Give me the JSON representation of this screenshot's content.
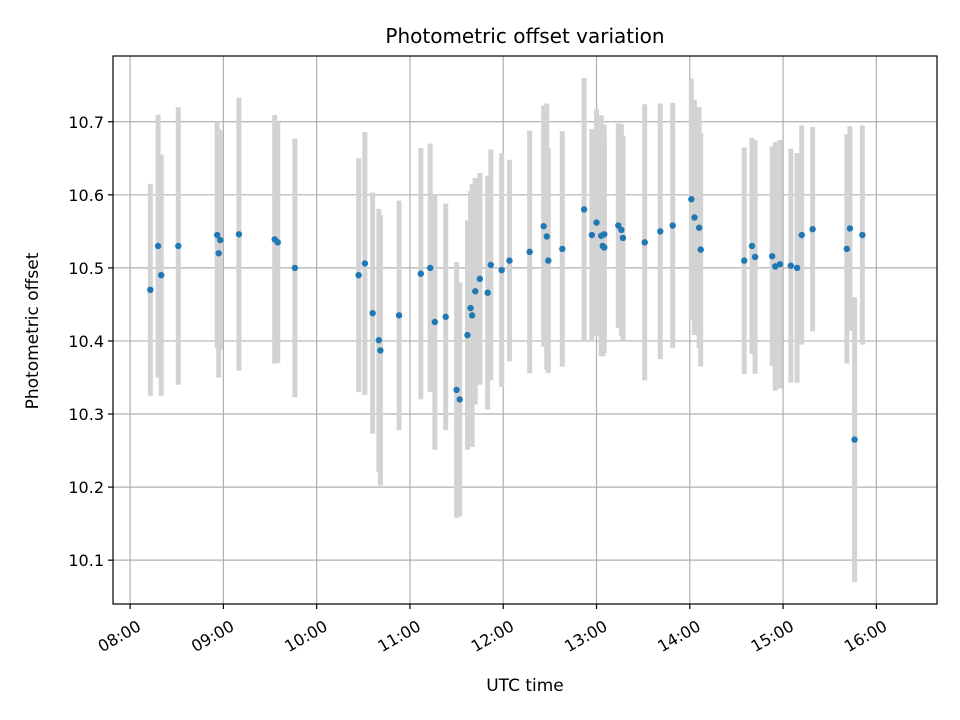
{
  "chart_data": {
    "type": "scatter",
    "title": "Photometric offset variation",
    "xlabel": "UTC time",
    "ylabel": "Photometric offset",
    "x_tick_labels": [
      "08:00",
      "09:00",
      "10:00",
      "11:00",
      "12:00",
      "13:00",
      "14:00",
      "15:00",
      "16:00"
    ],
    "y_tick_labels": [
      "10.1",
      "10.2",
      "10.3",
      "10.4",
      "10.5",
      "10.6",
      "10.7"
    ],
    "y_ticks": [
      10.1,
      10.2,
      10.3,
      10.4,
      10.5,
      10.6,
      10.7
    ],
    "xlim": [
      "07:49",
      "16:39"
    ],
    "ylim": [
      10.04,
      10.79
    ],
    "grid": true,
    "colors": {
      "point": "#1f77b4",
      "errorbar": "#d3d3d3",
      "grid": "#b0b0b0"
    },
    "series": [
      {
        "x": [
          "08:13",
          "08:18",
          "08:20",
          "08:31",
          "08:56",
          "08:57",
          "08:58",
          "09:10",
          "09:33",
          "09:35",
          "09:46",
          "10:27",
          "10:31",
          "10:36",
          "10:40",
          "10:41",
          "10:53",
          "11:07",
          "11:13",
          "11:16",
          "11:23",
          "11:30",
          "11:32",
          "11:37",
          "11:39",
          "11:40",
          "11:42",
          "11:45",
          "11:50",
          "11:52",
          "11:59",
          "12:04",
          "12:17",
          "12:26",
          "12:28",
          "12:29",
          "12:38",
          "12:52",
          "12:57",
          "13:00",
          "13:03",
          "13:04",
          "13:05",
          "13:05",
          "13:14",
          "13:16",
          "13:17",
          "13:31",
          "13:41",
          "13:49",
          "14:01",
          "14:03",
          "14:06",
          "14:07",
          "14:35",
          "14:40",
          "14:42",
          "14:53",
          "14:55",
          "14:55",
          "14:58",
          "15:05",
          "15:09",
          "15:12",
          "15:19",
          "15:41",
          "15:43",
          "15:46",
          "15:51"
        ],
        "y": [
          10.47,
          10.53,
          10.49,
          10.53,
          10.545,
          10.52,
          10.538,
          10.546,
          10.539,
          10.535,
          10.5,
          10.49,
          10.506,
          10.438,
          10.401,
          10.387,
          10.435,
          10.492,
          10.5,
          10.426,
          10.433,
          10.333,
          10.32,
          10.408,
          10.445,
          10.435,
          10.468,
          10.485,
          10.466,
          10.504,
          10.497,
          10.51,
          10.522,
          10.557,
          10.543,
          10.51,
          10.526,
          10.58,
          10.545,
          10.562,
          10.544,
          10.53,
          10.528,
          10.546,
          10.558,
          10.552,
          10.541,
          10.535,
          10.55,
          10.558,
          10.594,
          10.569,
          10.555,
          10.525,
          10.51,
          10.53,
          10.515,
          10.516,
          10.502,
          10.502,
          10.505,
          10.503,
          10.5,
          10.545,
          10.553,
          10.526,
          10.554,
          10.265,
          10.545
        ],
        "yerr": [
          0.145,
          0.18,
          0.165,
          0.19,
          0.155,
          0.17,
          0.15,
          0.187,
          0.17,
          0.165,
          0.177,
          0.16,
          0.18,
          0.165,
          0.18,
          0.185,
          0.157,
          0.172,
          0.17,
          0.175,
          0.155,
          0.175,
          0.16,
          0.157,
          0.16,
          0.18,
          0.155,
          0.145,
          0.16,
          0.158,
          0.16,
          0.138,
          0.166,
          0.165,
          0.182,
          0.154,
          0.161,
          0.18,
          0.145,
          0.155,
          0.165,
          0.151,
          0.145,
          0.15,
          0.14,
          0.145,
          0.14,
          0.189,
          0.175,
          0.168,
          0.165,
          0.161,
          0.165,
          0.16,
          0.155,
          0.148,
          0.16,
          0.15,
          0.165,
          0.17,
          0.17,
          0.16,
          0.157,
          0.15,
          0.14,
          0.157,
          0.14,
          0.195,
          0.15
        ]
      }
    ]
  }
}
